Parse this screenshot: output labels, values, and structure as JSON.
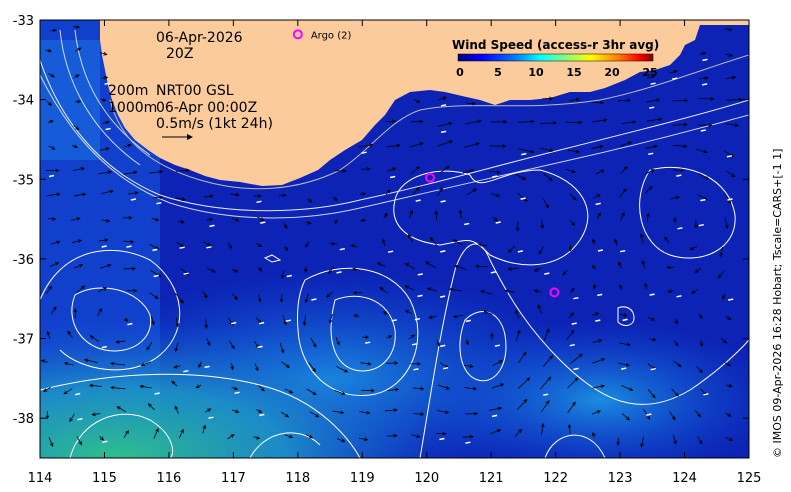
{
  "chart_data": {
    "type": "heatmap",
    "title": "",
    "xlabel": "",
    "ylabel": "",
    "xlim": [
      114,
      125
    ],
    "ylim": [
      -38.5,
      -33
    ],
    "x_ticks": [
      "114",
      "115",
      "116",
      "117",
      "118",
      "119",
      "120",
      "121",
      "122",
      "123",
      "124",
      "125"
    ],
    "y_ticks": [
      "-33",
      "-34",
      "-35",
      "-36",
      "-37",
      "-38"
    ],
    "colorbar": {
      "title": "Wind Speed (access-r 3hr avg)",
      "ticks": [
        "0",
        "5",
        "10",
        "15",
        "20",
        "25"
      ],
      "range": [
        0,
        25
      ],
      "colors": [
        "#00007f",
        "#0000ff",
        "#007fff",
        "#00ffff",
        "#7fff7f",
        "#ffff00",
        "#ff7f00",
        "#ff0000",
        "#7f0000"
      ]
    },
    "land_color": "#fbcb9c",
    "ocean_deep_color": "#0a1fb8",
    "ocean_shallow_color": "#2fb38c",
    "floats": [
      {
        "label": "Argo (2)",
        "lon": 118.0,
        "lat": -33.18,
        "color": "#ff00ff"
      },
      {
        "label": "",
        "lon": 120.05,
        "lat": -34.98,
        "color": "#ff00ff"
      },
      {
        "label": "",
        "lon": 121.98,
        "lat": -36.42,
        "color": "#ff00ff"
      }
    ]
  },
  "annotations": {
    "date": "06-Apr-2026",
    "time": "20Z",
    "depth_200": "200m",
    "depth_1000": "1000m",
    "product": "NRT00 GSL",
    "product_time": "06-Apr 00:00Z",
    "vector_scale": "0.5m/s (1kt 24h)"
  },
  "credit": "© IMOS 09-Apr-2026 16:28 Hobart; Tscale=CARS+[-1 1]"
}
